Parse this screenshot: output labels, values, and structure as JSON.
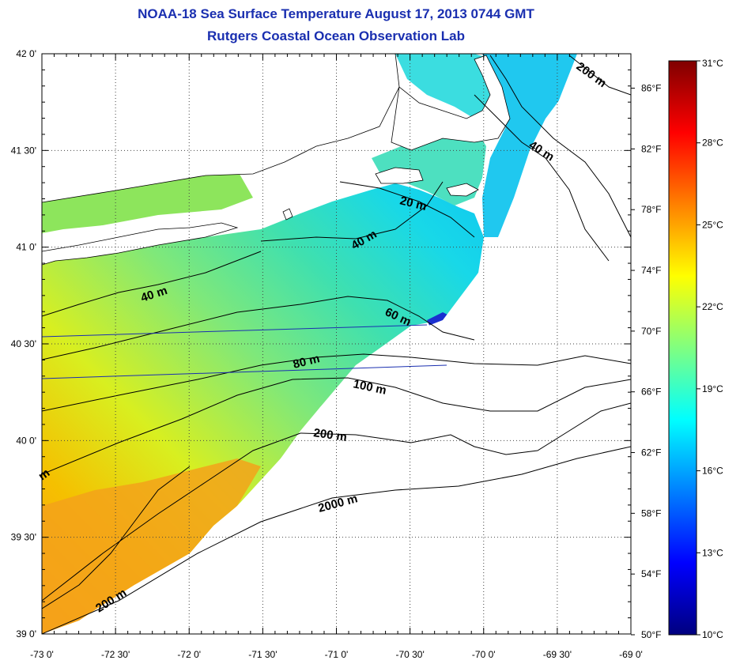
{
  "title": "NOAA-18 Sea Surface Temperature August 17, 2013 0744 GMT",
  "subtitle": "Rutgers Coastal Ocean Observation Lab",
  "map": {
    "lon_range": [
      -73.0,
      -69.0
    ],
    "lat_range": [
      39.0,
      42.0
    ],
    "lon_labels": [
      {
        "lon": -73.0,
        "text": "-73 0'"
      },
      {
        "lon": -72.5,
        "text": "-72 30'"
      },
      {
        "lon": -72.0,
        "text": "-72 0'"
      },
      {
        "lon": -71.5,
        "text": "-71 30'"
      },
      {
        "lon": -71.0,
        "text": "-71 0'"
      },
      {
        "lon": -70.5,
        "text": "-70 30'"
      },
      {
        "lon": -70.0,
        "text": "-70 0'"
      },
      {
        "lon": -69.5,
        "text": "-69 30'"
      },
      {
        "lon": -69.0,
        "text": "-69 0'"
      }
    ],
    "lat_labels": [
      {
        "lat": 42.0,
        "text": "42 0'"
      },
      {
        "lat": 41.5,
        "text": "41 30'"
      },
      {
        "lat": 41.0,
        "text": "41 0'"
      },
      {
        "lat": 40.5,
        "text": "40 30'"
      },
      {
        "lat": 40.0,
        "text": "40 0'"
      },
      {
        "lat": 39.5,
        "text": "39 30'"
      },
      {
        "lat": 39.0,
        "text": "39 0'"
      }
    ],
    "fahrenheit_labels": [
      "86°F",
      "82°F",
      "78°F",
      "74°F",
      "70°F",
      "66°F",
      "62°F",
      "58°F",
      "54°F",
      "50°F"
    ],
    "fahrenheit_values": [
      86,
      82,
      78,
      74,
      70,
      66,
      62,
      58,
      54,
      50
    ],
    "grid": true
  },
  "colorbar": {
    "min_c": 10,
    "max_c": 31,
    "labels": [
      {
        "value": 31,
        "text": "31°C"
      },
      {
        "value": 28,
        "text": "28°C"
      },
      {
        "value": 25,
        "text": "25°C"
      },
      {
        "value": 22,
        "text": "22°C"
      },
      {
        "value": 19,
        "text": "19°C"
      },
      {
        "value": 16,
        "text": "16°C"
      },
      {
        "value": 13,
        "text": "13°C"
      },
      {
        "value": 10,
        "text": "10°C"
      }
    ],
    "colors": [
      "#00007f",
      "#0000ff",
      "#0080ff",
      "#00ffff",
      "#80ff80",
      "#ffff00",
      "#ff8000",
      "#ff0000",
      "#7f0000"
    ]
  },
  "contour_labels": [
    {
      "text": "20 m"
    },
    {
      "text": "40 m"
    },
    {
      "text": "40 m"
    },
    {
      "text": "40 m"
    },
    {
      "text": "60 m"
    },
    {
      "text": "80 m"
    },
    {
      "text": "100 m"
    },
    {
      "text": "200 m"
    },
    {
      "text": "200 m"
    },
    {
      "text": "200 m"
    },
    {
      "text": "2000 m"
    },
    {
      "text": "m"
    }
  ]
}
